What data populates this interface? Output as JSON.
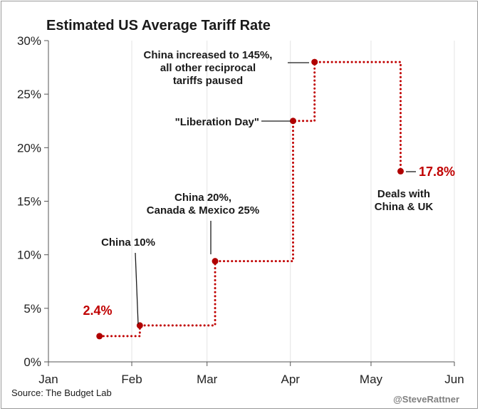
{
  "chart_data": {
    "type": "line",
    "title": "Estimated US Average Tariff Rate",
    "xlabel": "",
    "ylabel": "",
    "x_ticks": [
      "Jan",
      "Feb",
      "Mar",
      "Apr",
      "May",
      "Jun"
    ],
    "y_ticks": [
      "0%",
      "5%",
      "10%",
      "15%",
      "20%",
      "25%",
      "30%"
    ],
    "ylim": [
      0,
      30
    ],
    "xlim": [
      "2025-01-01",
      "2025-06-01"
    ],
    "line_style": "dotted step",
    "grid": "vertical at month ticks",
    "series": [
      {
        "points": [
          {
            "date": "2025-01-20",
            "value": 2.4
          },
          {
            "date": "2025-02-04",
            "value": 3.4
          },
          {
            "date": "2025-03-04",
            "value": 9.4
          },
          {
            "date": "2025-04-02",
            "value": 22.5
          },
          {
            "date": "2025-04-10",
            "value": 28.0
          },
          {
            "date": "2025-05-12",
            "value": 17.8
          }
        ]
      }
    ],
    "annotations": [
      {
        "lines": [
          "2.4%"
        ],
        "date": "2025-01-20",
        "value": 2.4,
        "style": "value"
      },
      {
        "lines": [
          "China 10%"
        ],
        "date": "2025-02-04",
        "value": 3.4,
        "style": "note"
      },
      {
        "lines": [
          "China 20%,",
          "Canada & Mexico 25%"
        ],
        "date": "2025-03-04",
        "value": 9.4,
        "style": "note"
      },
      {
        "lines": [
          "\"Liberation Day\""
        ],
        "date": "2025-04-02",
        "value": 22.5,
        "style": "note"
      },
      {
        "lines": [
          "China increased to 145%,",
          "all other reciprocal",
          "tariffs paused"
        ],
        "date": "2025-04-10",
        "value": 28.0,
        "style": "note"
      },
      {
        "lines": [
          "17.8%"
        ],
        "date": "2025-05-12",
        "value": 17.8,
        "style": "value"
      },
      {
        "lines": [
          "Deals with",
          "China & UK"
        ],
        "date": "2025-05-12",
        "value": 17.8,
        "style": "note"
      }
    ],
    "source": "Source: The Budget Lab",
    "credit": "@SteveRattner"
  },
  "colors": {
    "line": "#c00000",
    "grid": "#e4e4e4",
    "axis": "#555555",
    "text": "#1a1a1a"
  }
}
